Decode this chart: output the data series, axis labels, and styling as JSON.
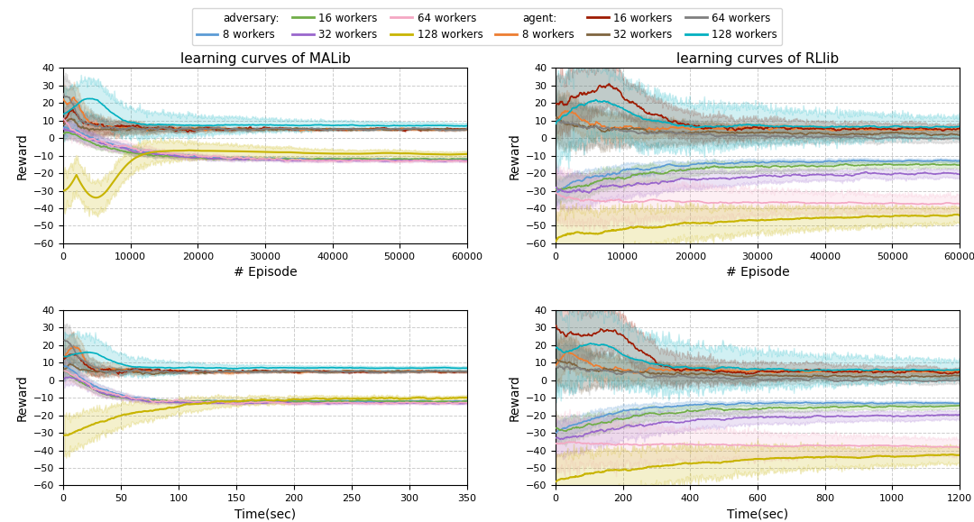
{
  "legend": {
    "adversary_label": "adversary:",
    "agent_label": "agent:",
    "workers": [
      8,
      16,
      32,
      64,
      128
    ],
    "adversary_colors": [
      "#5b9bd5",
      "#70ad47",
      "#9966cc",
      "#f4a7c3",
      "#c8b400"
    ],
    "agent_colors": [
      "#ed7d31",
      "#9e1b00",
      "#7f6540",
      "#7f7f7f",
      "#00b0c0"
    ]
  },
  "subplots": {
    "top_left": {
      "title": "learning curves of MALib",
      "xlabel": "# Episode",
      "ylabel": "Reward",
      "xlim": [
        0,
        60000
      ],
      "ylim": [
        -60,
        40
      ],
      "yticks": [
        -60,
        -50,
        -40,
        -30,
        -20,
        -10,
        0,
        10,
        20,
        30,
        40
      ],
      "xticks": [
        0,
        10000,
        20000,
        30000,
        40000,
        50000,
        60000
      ]
    },
    "top_right": {
      "title": "learning curves of RLlib",
      "xlabel": "# Episode",
      "ylabel": "Reward",
      "xlim": [
        0,
        60000
      ],
      "ylim": [
        -60,
        40
      ],
      "yticks": [
        -60,
        -50,
        -40,
        -30,
        -20,
        -10,
        0,
        10,
        20,
        30,
        40
      ],
      "xticks": [
        0,
        10000,
        20000,
        30000,
        40000,
        50000,
        60000
      ]
    },
    "bot_left": {
      "title": "",
      "xlabel": "Time(sec)",
      "ylabel": "Reward",
      "xlim": [
        0,
        350
      ],
      "ylim": [
        -60,
        40
      ],
      "yticks": [
        -60,
        -50,
        -40,
        -30,
        -20,
        -10,
        0,
        10,
        20,
        30,
        40
      ],
      "xticks": [
        0,
        50,
        100,
        150,
        200,
        250,
        300,
        350
      ]
    },
    "bot_right": {
      "title": "",
      "xlabel": "Time(sec)",
      "ylabel": "Reward",
      "xlim": [
        0,
        1200
      ],
      "ylim": [
        -60,
        40
      ],
      "yticks": [
        -60,
        -50,
        -40,
        -30,
        -20,
        -10,
        0,
        10,
        20,
        30,
        40
      ],
      "xticks": [
        0,
        200,
        400,
        600,
        800,
        1000,
        1200
      ]
    }
  },
  "background_color": "#ffffff",
  "grid_color": "#c0c0c0",
  "grid_style": "--",
  "grid_alpha": 0.8
}
